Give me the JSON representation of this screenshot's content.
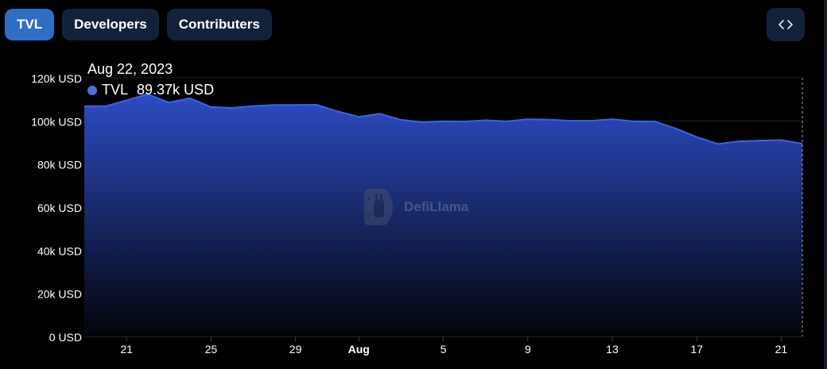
{
  "tabs": [
    {
      "label": "TVL",
      "active": true
    },
    {
      "label": "Developers",
      "active": false
    },
    {
      "label": "Contributers",
      "active": false
    }
  ],
  "embed_icon": "code-brackets-icon",
  "tooltip": {
    "date": "Aug 22, 2023",
    "series": "TVL",
    "value": "89.37k USD",
    "dot_color": "#4f6fe0"
  },
  "watermark": {
    "text": "DefiLlama",
    "icon": "llama-logo-icon"
  },
  "colors": {
    "line": "#3f63d9",
    "fill_top": "#2c4cc4",
    "fill_bottom": "#03040a",
    "background": "#000000"
  },
  "chart_data": {
    "type": "area",
    "series": [
      {
        "name": "TVL",
        "x": [
          "2023-07-19",
          "2023-07-20",
          "2023-07-21",
          "2023-07-22",
          "2023-07-23",
          "2023-07-24",
          "2023-07-25",
          "2023-07-26",
          "2023-07-27",
          "2023-07-28",
          "2023-07-29",
          "2023-07-30",
          "2023-07-31",
          "2023-08-01",
          "2023-08-02",
          "2023-08-03",
          "2023-08-04",
          "2023-08-05",
          "2023-08-06",
          "2023-08-07",
          "2023-08-08",
          "2023-08-09",
          "2023-08-10",
          "2023-08-11",
          "2023-08-12",
          "2023-08-13",
          "2023-08-14",
          "2023-08-15",
          "2023-08-16",
          "2023-08-17",
          "2023-08-18",
          "2023-08-19",
          "2023-08-20",
          "2023-08-21",
          "2023-08-22"
        ],
        "values": [
          106.8,
          106.8,
          109.5,
          112.4,
          108.5,
          110.5,
          106.4,
          106,
          106.9,
          107.4,
          107.4,
          107.5,
          104.4,
          101.9,
          103.3,
          100.5,
          99.4,
          99.8,
          99.7,
          100.3,
          99.8,
          100.8,
          100.6,
          100.1,
          100.1,
          100.8,
          99.8,
          99.7,
          96.5,
          92.5,
          89.3,
          90.5,
          90.9,
          91.1,
          89.4
        ]
      }
    ],
    "unit": "k USD",
    "y_ticks": [
      "0 USD",
      "20k USD",
      "40k USD",
      "60k USD",
      "80k USD",
      "100k USD",
      "120k USD"
    ],
    "y_tick_values": [
      0,
      20,
      40,
      60,
      80,
      100,
      120
    ],
    "x_ticks": [
      {
        "label": "21",
        "date": "2023-07-21"
      },
      {
        "label": "25",
        "date": "2023-07-25"
      },
      {
        "label": "29",
        "date": "2023-07-29"
      },
      {
        "label": "Aug",
        "date": "2023-08-01"
      },
      {
        "label": "5",
        "date": "2023-08-05"
      },
      {
        "label": "9",
        "date": "2023-08-09"
      },
      {
        "label": "13",
        "date": "2023-08-13"
      },
      {
        "label": "17",
        "date": "2023-08-17"
      },
      {
        "label": "21",
        "date": "2023-08-21"
      }
    ],
    "ylim": [
      0,
      120
    ],
    "xlim": [
      "2023-07-19",
      "2023-08-22"
    ],
    "grid": true,
    "hover_date": "2023-08-22"
  }
}
